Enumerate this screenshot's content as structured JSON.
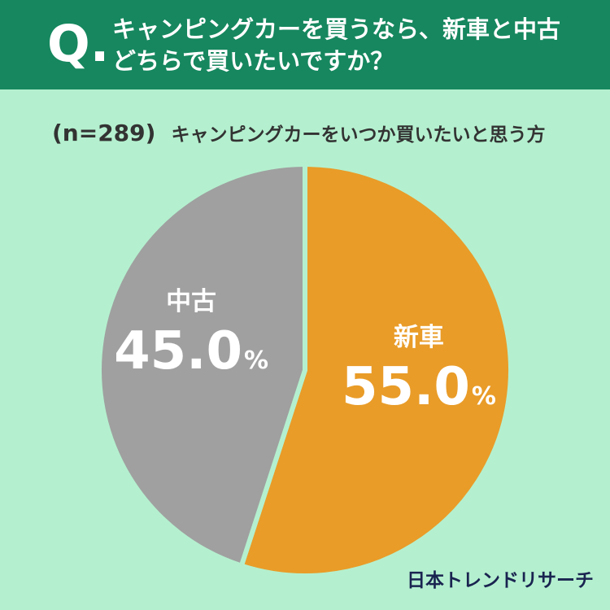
{
  "header": {
    "q_mark": "Q.",
    "question_line1": "キャンピングカーを買うなら、新車と中古",
    "question_line2": "どちらで買いたいですか？"
  },
  "subtitle": {
    "sample_size": "(n=289)",
    "respondents": "キャンピングカーをいつか買いたいと思う方"
  },
  "chart_data": {
    "type": "pie",
    "title": "キャンピングカーを買うなら、新車と中古どちらで買いたいですか？",
    "slices": [
      {
        "label": "新車",
        "value": 55.0,
        "display": "55.0",
        "unit": "%",
        "color": "#e99c28"
      },
      {
        "label": "中古",
        "value": 45.0,
        "display": "45.0",
        "unit": "%",
        "color": "#a0a0a0"
      }
    ],
    "separator_color": "#b4f0cf",
    "label_color": "#ffffff"
  },
  "brand": {
    "name": "日本トレンドリサーチ"
  }
}
